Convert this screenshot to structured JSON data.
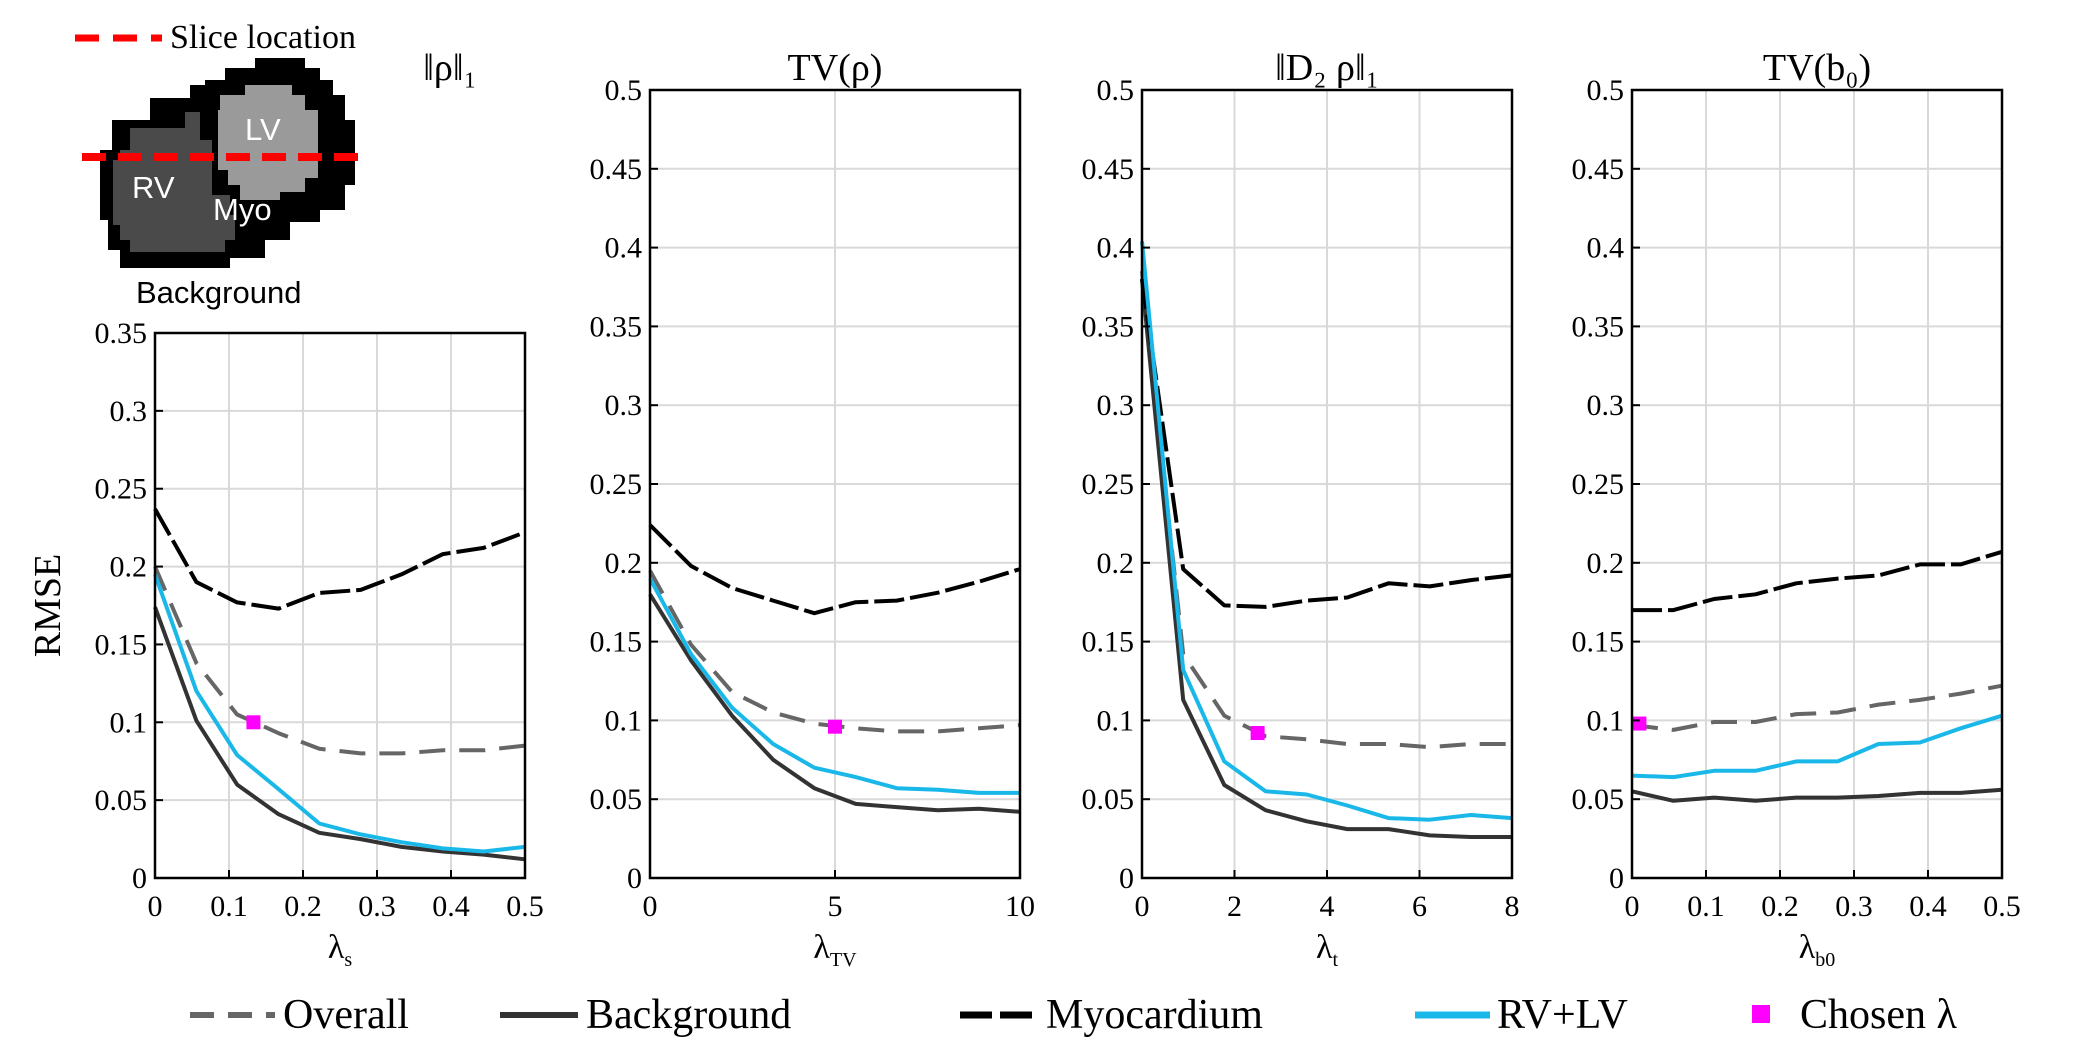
{
  "colors": {
    "overall": "#666666",
    "background": "#333333",
    "myocardium": "#000000",
    "rvlv": "#1ab8e8",
    "chosen": "#ff00ff",
    "slice": "#ff0000",
    "grid": "#d9d9d9"
  },
  "inset": {
    "slice_label": "Slice location",
    "lv": "LV",
    "rv": "RV",
    "myo": "Myo",
    "background": "Background"
  },
  "legend": {
    "overall": "Overall",
    "background": "Background",
    "myocardium": "Myocardium",
    "rvlv": "RV+LV",
    "chosen": "Chosen λ"
  },
  "chart_data": [
    {
      "type": "line",
      "title": "‖ρ‖₁",
      "xlabel": "λ",
      "xlabel_sub": "s",
      "ylabel": "RMSE",
      "xlim": [
        0,
        0.5
      ],
      "ylim": [
        0,
        0.35
      ],
      "xticks": [
        0,
        0.1,
        0.2,
        0.3,
        0.4,
        0.5
      ],
      "xtick_labels": [
        "0",
        "0.1",
        "0.2",
        "0.3",
        "0.4",
        "0.5"
      ],
      "yticks": [
        0,
        0.05,
        0.1,
        0.15,
        0.2,
        0.25,
        0.3,
        0.35
      ],
      "ytick_labels": [
        "0",
        "0.05",
        "0.1",
        "0.15",
        "0.2",
        "0.25",
        "0.3",
        "0.35"
      ],
      "x": [
        0,
        0.056,
        0.111,
        0.167,
        0.222,
        0.278,
        0.333,
        0.389,
        0.444,
        0.5
      ],
      "series": [
        {
          "key": "overall",
          "values": [
            0.2,
            0.138,
            0.105,
            0.093,
            0.083,
            0.08,
            0.08,
            0.082,
            0.082,
            0.085
          ]
        },
        {
          "key": "background",
          "values": [
            0.174,
            0.101,
            0.06,
            0.041,
            0.029,
            0.025,
            0.02,
            0.017,
            0.015,
            0.012
          ]
        },
        {
          "key": "myocardium",
          "values": [
            0.237,
            0.19,
            0.177,
            0.173,
            0.183,
            0.185,
            0.195,
            0.208,
            0.212,
            0.222
          ]
        },
        {
          "key": "rvlv",
          "values": [
            0.195,
            0.12,
            0.079,
            0.057,
            0.035,
            0.028,
            0.023,
            0.019,
            0.017,
            0.02
          ]
        }
      ],
      "chosen": {
        "x": 0.133,
        "y": 0.1
      }
    },
    {
      "type": "line",
      "title": "TV(ρ)",
      "xlabel": "λ",
      "xlabel_sub": "TV",
      "xlim": [
        0,
        10
      ],
      "ylim": [
        0,
        0.5
      ],
      "xticks": [
        0,
        5,
        10
      ],
      "xtick_labels": [
        "0",
        "5",
        "10"
      ],
      "yticks": [
        0,
        0.05,
        0.1,
        0.15,
        0.2,
        0.25,
        0.3,
        0.35,
        0.4,
        0.45,
        0.5
      ],
      "ytick_labels": [
        "0",
        "0.05",
        "0.1",
        "0.15",
        "0.2",
        "0.25",
        "0.3",
        "0.35",
        "0.4",
        "0.45",
        "0.5"
      ],
      "x": [
        0,
        1.11,
        2.22,
        3.33,
        4.44,
        5.56,
        6.67,
        7.78,
        8.89,
        10
      ],
      "series": [
        {
          "key": "overall",
          "values": [
            0.195,
            0.148,
            0.118,
            0.105,
            0.098,
            0.095,
            0.093,
            0.093,
            0.095,
            0.097
          ]
        },
        {
          "key": "background",
          "values": [
            0.18,
            0.138,
            0.103,
            0.075,
            0.057,
            0.047,
            0.045,
            0.043,
            0.044,
            0.042
          ]
        },
        {
          "key": "myocardium",
          "values": [
            0.224,
            0.198,
            0.184,
            0.176,
            0.168,
            0.175,
            0.176,
            0.181,
            0.188,
            0.196
          ]
        },
        {
          "key": "rvlv",
          "values": [
            0.19,
            0.142,
            0.108,
            0.085,
            0.07,
            0.064,
            0.057,
            0.056,
            0.054,
            0.054
          ]
        }
      ],
      "chosen": {
        "x": 5,
        "y": 0.096
      }
    },
    {
      "type": "line",
      "title": "‖D₂ ρ‖₁",
      "xlabel": "λ",
      "xlabel_sub": "t",
      "xlim": [
        0,
        8
      ],
      "ylim": [
        0,
        0.5
      ],
      "xticks": [
        0,
        2,
        4,
        6,
        8
      ],
      "xtick_labels": [
        "0",
        "2",
        "4",
        "6",
        "8"
      ],
      "yticks": [
        0,
        0.05,
        0.1,
        0.15,
        0.2,
        0.25,
        0.3,
        0.35,
        0.4,
        0.45,
        0.5
      ],
      "ytick_labels": [
        "0",
        "0.05",
        "0.1",
        "0.15",
        "0.2",
        "0.25",
        "0.3",
        "0.35",
        "0.4",
        "0.45",
        "0.5"
      ],
      "x": [
        0,
        0.89,
        1.78,
        2.67,
        3.56,
        4.44,
        5.33,
        6.22,
        7.11,
        8
      ],
      "series": [
        {
          "key": "overall",
          "values": [
            0.385,
            0.142,
            0.103,
            0.09,
            0.088,
            0.085,
            0.085,
            0.083,
            0.085,
            0.085
          ]
        },
        {
          "key": "background",
          "values": [
            0.38,
            0.113,
            0.059,
            0.043,
            0.036,
            0.031,
            0.031,
            0.027,
            0.026,
            0.026
          ]
        },
        {
          "key": "myocardium",
          "values": [
            0.38,
            0.196,
            0.173,
            0.172,
            0.176,
            0.178,
            0.187,
            0.185,
            0.189,
            0.192
          ]
        },
        {
          "key": "rvlv",
          "values": [
            0.404,
            0.132,
            0.074,
            0.055,
            0.053,
            0.046,
            0.038,
            0.037,
            0.04,
            0.038
          ]
        }
      ],
      "chosen": {
        "x": 2.5,
        "y": 0.092
      }
    },
    {
      "type": "line",
      "title": "TV(b₀)",
      "xlabel": "λ",
      "xlabel_sub": "b0",
      "xlim": [
        0,
        0.5
      ],
      "ylim": [
        0,
        0.5
      ],
      "xticks": [
        0,
        0.1,
        0.2,
        0.3,
        0.4,
        0.5
      ],
      "xtick_labels": [
        "0",
        "0.1",
        "0.2",
        "0.3",
        "0.4",
        "0.5"
      ],
      "yticks": [
        0,
        0.05,
        0.1,
        0.15,
        0.2,
        0.25,
        0.3,
        0.35,
        0.4,
        0.45,
        0.5
      ],
      "ytick_labels": [
        "0",
        "0.05",
        "0.1",
        "0.15",
        "0.2",
        "0.25",
        "0.3",
        "0.35",
        "0.4",
        "0.45",
        "0.5"
      ],
      "x": [
        0,
        0.056,
        0.111,
        0.167,
        0.222,
        0.278,
        0.333,
        0.389,
        0.444,
        0.5
      ],
      "series": [
        {
          "key": "overall",
          "values": [
            0.097,
            0.094,
            0.099,
            0.099,
            0.104,
            0.105,
            0.11,
            0.113,
            0.117,
            0.122
          ]
        },
        {
          "key": "background",
          "values": [
            0.055,
            0.049,
            0.051,
            0.049,
            0.051,
            0.051,
            0.052,
            0.054,
            0.054,
            0.056
          ]
        },
        {
          "key": "myocardium",
          "values": [
            0.17,
            0.17,
            0.177,
            0.18,
            0.187,
            0.19,
            0.192,
            0.199,
            0.199,
            0.207
          ]
        },
        {
          "key": "rvlv",
          "values": [
            0.065,
            0.064,
            0.068,
            0.068,
            0.074,
            0.074,
            0.085,
            0.086,
            0.095,
            0.103
          ]
        }
      ],
      "chosen": {
        "x": 0.01,
        "y": 0.098
      }
    }
  ]
}
